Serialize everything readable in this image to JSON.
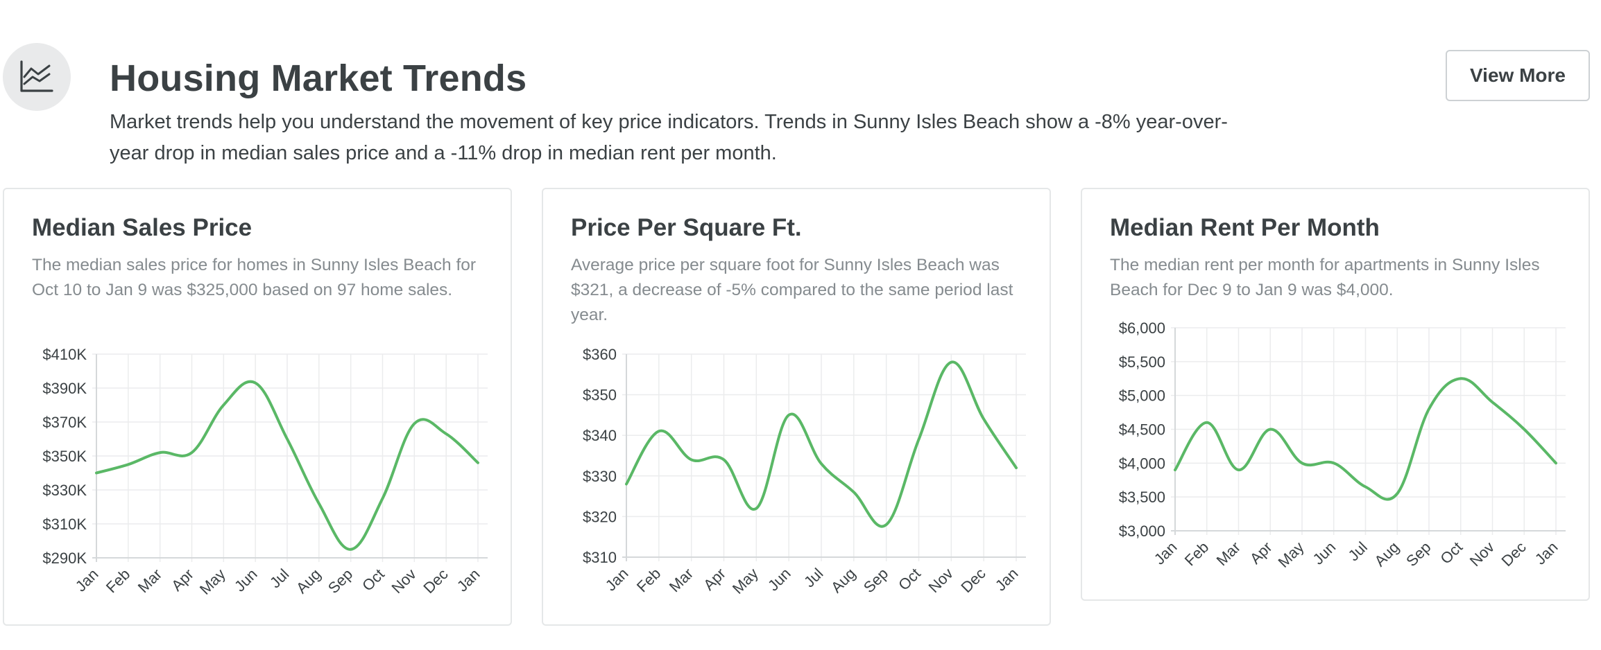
{
  "header": {
    "icon": "line-chart-icon",
    "title": "Housing Market Trends",
    "description": "Market trends help you understand the movement of key price indicators. Trends in Sunny Isles Beach show a -8% year-over-year drop in median sales price and a -11% drop in median rent per month.",
    "view_more_label": "View More"
  },
  "colors": {
    "line": "#5ab866",
    "grid": "#ebeced",
    "card_border": "#e5e7e8",
    "muted_text": "#858b8f",
    "icon_bg": "#e9eaeb"
  },
  "cards": [
    {
      "title": "Median Sales Price",
      "description": "The median sales price for homes in Sunny Isles Beach for Oct 10 to Jan 9 was $325,000 based on 97 home sales."
    },
    {
      "title": "Price Per Square Ft.",
      "description": "Average price per square foot for Sunny Isles Beach was $321, a decrease of -5% compared to the same period last year."
    },
    {
      "title": "Median Rent Per Month",
      "description": "The median rent per month for apartments in Sunny Isles Beach for Dec 9 to Jan 9 was $4,000."
    }
  ],
  "chart_data": [
    {
      "type": "line",
      "title": "Median Sales Price",
      "x": [
        "Jan",
        "Feb",
        "Mar",
        "Apr",
        "May",
        "Jun",
        "Jul",
        "Aug",
        "Sep",
        "Oct",
        "Nov",
        "Dec",
        "Jan"
      ],
      "series": [
        {
          "values": [
            340000,
            345000,
            352000,
            352000,
            380000,
            393000,
            360000,
            322000,
            295000,
            325000,
            369000,
            363000,
            346000
          ]
        }
      ],
      "y_ticks": [
        "$290K",
        "$310K",
        "$330K",
        "$350K",
        "$370K",
        "$390K",
        "$410K"
      ],
      "ylim": [
        290000,
        410000
      ],
      "grid": true
    },
    {
      "type": "line",
      "title": "Price Per Square Ft.",
      "x": [
        "Jan",
        "Feb",
        "Mar",
        "Apr",
        "May",
        "Jun",
        "Jul",
        "Aug",
        "Sep",
        "Oct",
        "Nov",
        "Dec",
        "Jan"
      ],
      "series": [
        {
          "values": [
            328,
            341,
            334,
            334,
            322,
            345,
            333,
            326,
            318,
            339,
            358,
            344,
            332
          ]
        }
      ],
      "y_ticks": [
        "$310",
        "$320",
        "$330",
        "$340",
        "$350",
        "$360"
      ],
      "ylim": [
        310,
        360
      ],
      "grid": true
    },
    {
      "type": "line",
      "title": "Median Rent Per Month",
      "x": [
        "Jan",
        "Feb",
        "Mar",
        "Apr",
        "May",
        "Jun",
        "Jul",
        "Aug",
        "Sep",
        "Oct",
        "Nov",
        "Dec",
        "Jan"
      ],
      "series": [
        {
          "values": [
            3900,
            4600,
            3900,
            4500,
            4000,
            4000,
            3650,
            3550,
            4800,
            5250,
            4900,
            4500,
            4000
          ]
        }
      ],
      "y_ticks": [
        "$3,000",
        "$3,500",
        "$4,000",
        "$4,500",
        "$5,000",
        "$5,500",
        "$6,000"
      ],
      "ylim": [
        3000,
        6000
      ],
      "grid": true
    }
  ]
}
